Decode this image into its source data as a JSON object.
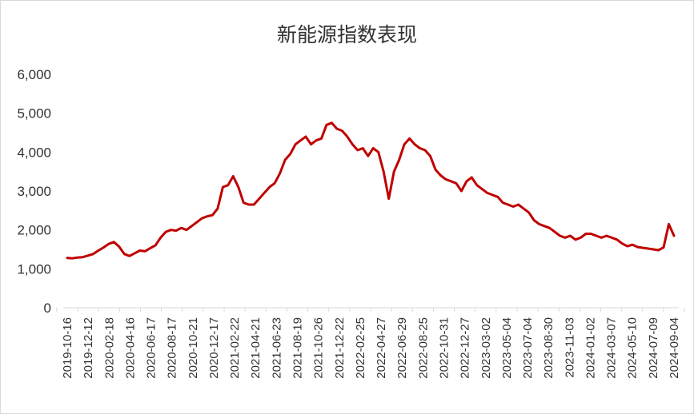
{
  "chart_data": {
    "type": "line",
    "title": "新能源指数表现",
    "xlabel": "",
    "ylabel": "",
    "ylim": [
      0,
      6000
    ],
    "yticks": [
      "0",
      "1,000",
      "2,000",
      "3,000",
      "4,000",
      "5,000",
      "6,000"
    ],
    "grid": false,
    "legend": "none",
    "line_color": "#c00000",
    "x_tick_labels": [
      "2019-10-16",
      "2019-12-12",
      "2020-02-18",
      "2020-04-16",
      "2020-06-17",
      "2020-08-17",
      "2020-10-21",
      "2020-12-17",
      "2021-02-22",
      "2021-04-21",
      "2021-06-23",
      "2021-08-19",
      "2021-10-26",
      "2021-12-22",
      "2022-02-25",
      "2022-04-27",
      "2022-06-29",
      "2022-08-25",
      "2022-10-31",
      "2022-12-27",
      "2023-03-02",
      "2023-05-04",
      "2023-07-04",
      "2023-08-30",
      "2023-11-03",
      "2024-01-02",
      "2024-03-07",
      "2024-05-10",
      "2024-07-09",
      "2024-09-04"
    ],
    "series": [
      {
        "values": [
          1280,
          1270,
          1290,
          1300,
          1340,
          1380,
          1470,
          1550,
          1640,
          1690,
          1570,
          1380,
          1330,
          1400,
          1470,
          1450,
          1530,
          1600,
          1800,
          1950,
          2000,
          1980,
          2050,
          2000,
          2100,
          2200,
          2300,
          2350,
          2380,
          2550,
          3100,
          3150,
          3380,
          3100,
          2700,
          2650,
          2650,
          2800,
          2950,
          3100,
          3200,
          3450,
          3800,
          3950,
          4200,
          4300,
          4400,
          4200,
          4300,
          4350,
          4700,
          4750,
          4600,
          4550,
          4400,
          4200,
          4050,
          4100,
          3900,
          4100,
          4000,
          3500,
          2800,
          3500,
          3800,
          4200,
          4350,
          4200,
          4100,
          4050,
          3900,
          3550,
          3400,
          3300,
          3250,
          3200,
          3000,
          3250,
          3350,
          3150,
          3050,
          2950,
          2900,
          2850,
          2700,
          2650,
          2600,
          2650,
          2550,
          2450,
          2250,
          2150,
          2100,
          2050,
          1950,
          1850,
          1800,
          1850,
          1750,
          1800,
          1900,
          1900,
          1850,
          1800,
          1850,
          1800,
          1750,
          1650,
          1580,
          1620,
          1560,
          1540,
          1520,
          1500,
          1480,
          1550,
          2150,
          1850
        ]
      }
    ]
  }
}
